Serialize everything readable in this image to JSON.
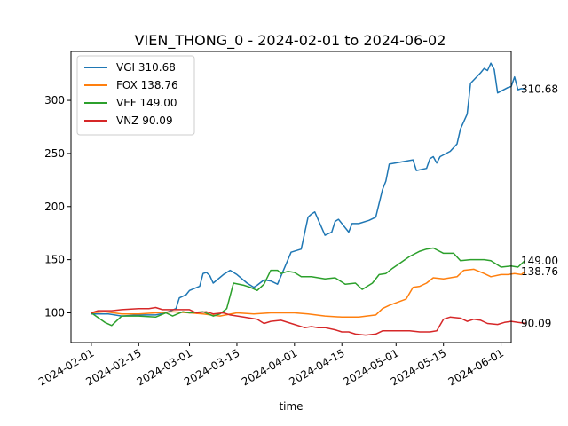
{
  "chart_data": {
    "type": "line",
    "title": "VIEN_THONG_0 - 2024-02-01 to 2024-06-02",
    "xlabel": "time",
    "ylabel": "",
    "x_range": [
      "2024-01-26",
      "2024-06-04"
    ],
    "ylim": [
      72,
      346
    ],
    "x_ticks": [
      "2024-02-01",
      "2024-02-15",
      "2024-03-01",
      "2024-03-15",
      "2024-04-01",
      "2024-04-15",
      "2024-05-01",
      "2024-05-15",
      "2024-06-01"
    ],
    "y_ticks": [
      100,
      150,
      200,
      250,
      300
    ],
    "grid": false,
    "legend_position": "top-left",
    "series": [
      {
        "name": "VGI 310.68",
        "end_label": "310.68",
        "color": "#1f77b4",
        "points": [
          [
            "2024-02-01",
            99
          ],
          [
            "2024-02-06",
            99
          ],
          [
            "2024-02-10",
            97
          ],
          [
            "2024-02-15",
            98
          ],
          [
            "2024-02-20",
            98
          ],
          [
            "2024-02-23",
            100
          ],
          [
            "2024-02-26",
            104
          ],
          [
            "2024-02-27",
            114
          ],
          [
            "2024-02-29",
            117
          ],
          [
            "2024-03-01",
            121
          ],
          [
            "2024-03-04",
            125
          ],
          [
            "2024-03-05",
            137
          ],
          [
            "2024-03-06",
            138
          ],
          [
            "2024-03-07",
            135
          ],
          [
            "2024-03-08",
            128
          ],
          [
            "2024-03-11",
            136
          ],
          [
            "2024-03-13",
            140
          ],
          [
            "2024-03-15",
            136
          ],
          [
            "2024-03-18",
            128
          ],
          [
            "2024-03-20",
            124
          ],
          [
            "2024-03-21",
            126
          ],
          [
            "2024-03-23",
            131
          ],
          [
            "2024-03-25",
            130
          ],
          [
            "2024-03-27",
            127
          ],
          [
            "2024-03-29",
            142
          ],
          [
            "2024-03-31",
            157
          ],
          [
            "2024-04-03",
            160
          ],
          [
            "2024-04-05",
            190
          ],
          [
            "2024-04-06",
            193
          ],
          [
            "2024-04-07",
            195
          ],
          [
            "2024-04-10",
            173
          ],
          [
            "2024-04-12",
            176
          ],
          [
            "2024-04-13",
            186
          ],
          [
            "2024-04-14",
            188
          ],
          [
            "2024-04-17",
            176
          ],
          [
            "2024-04-18",
            184
          ],
          [
            "2024-04-20",
            184
          ],
          [
            "2024-04-23",
            187
          ],
          [
            "2024-04-25",
            190
          ],
          [
            "2024-04-27",
            216
          ],
          [
            "2024-04-28",
            224
          ],
          [
            "2024-04-29",
            240
          ],
          [
            "2024-05-06",
            244
          ],
          [
            "2024-05-07",
            234
          ],
          [
            "2024-05-10",
            236
          ],
          [
            "2024-05-11",
            245
          ],
          [
            "2024-05-12",
            247
          ],
          [
            "2024-05-13",
            241
          ],
          [
            "2024-05-14",
            247
          ],
          [
            "2024-05-17",
            252
          ],
          [
            "2024-05-19",
            259
          ],
          [
            "2024-05-20",
            273
          ],
          [
            "2024-05-22",
            287
          ],
          [
            "2024-05-23",
            316
          ],
          [
            "2024-05-26",
            326
          ],
          [
            "2024-05-27",
            330
          ],
          [
            "2024-05-28",
            328
          ],
          [
            "2024-05-29",
            335
          ],
          [
            "2024-05-30",
            329
          ],
          [
            "2024-05-31",
            307
          ],
          [
            "2024-06-03",
            312
          ],
          [
            "2024-06-04",
            313
          ],
          [
            "2024-06-05",
            322
          ],
          [
            "2024-06-06",
            310
          ],
          [
            "2024-06-07",
            311
          ],
          [
            "2024-06-08",
            310.68
          ]
        ]
      },
      {
        "name": "FOX 138.76",
        "end_label": "138.76",
        "color": "#ff7f0e",
        "points": [
          [
            "2024-02-01",
            100
          ],
          [
            "2024-02-05",
            101
          ],
          [
            "2024-02-10",
            99
          ],
          [
            "2024-02-15",
            99
          ],
          [
            "2024-02-20",
            100
          ],
          [
            "2024-02-25",
            101
          ],
          [
            "2024-03-01",
            100
          ],
          [
            "2024-03-05",
            99
          ],
          [
            "2024-03-10",
            97
          ],
          [
            "2024-03-15",
            100
          ],
          [
            "2024-03-20",
            99
          ],
          [
            "2024-03-25",
            100
          ],
          [
            "2024-04-01",
            100
          ],
          [
            "2024-04-05",
            99
          ],
          [
            "2024-04-10",
            97
          ],
          [
            "2024-04-15",
            96
          ],
          [
            "2024-04-20",
            96
          ],
          [
            "2024-04-25",
            98
          ],
          [
            "2024-04-27",
            104
          ],
          [
            "2024-04-29",
            107
          ],
          [
            "2024-05-04",
            113
          ],
          [
            "2024-05-06",
            124
          ],
          [
            "2024-05-08",
            125
          ],
          [
            "2024-05-10",
            128
          ],
          [
            "2024-05-12",
            133
          ],
          [
            "2024-05-15",
            132
          ],
          [
            "2024-05-19",
            134
          ],
          [
            "2024-05-21",
            140
          ],
          [
            "2024-05-24",
            141
          ],
          [
            "2024-05-27",
            137
          ],
          [
            "2024-05-29",
            134
          ],
          [
            "2024-06-01",
            136
          ],
          [
            "2024-06-03",
            136
          ],
          [
            "2024-06-05",
            137
          ],
          [
            "2024-06-07",
            136
          ],
          [
            "2024-06-08",
            138.76
          ]
        ]
      },
      {
        "name": "VEF 149.00",
        "end_label": "149.00",
        "color": "#2ca02c",
        "points": [
          [
            "2024-02-01",
            100
          ],
          [
            "2024-02-05",
            91
          ],
          [
            "2024-02-07",
            88
          ],
          [
            "2024-02-10",
            97
          ],
          [
            "2024-02-15",
            97
          ],
          [
            "2024-02-20",
            96
          ],
          [
            "2024-02-23",
            100
          ],
          [
            "2024-02-25",
            97
          ],
          [
            "2024-02-28",
            101
          ],
          [
            "2024-03-01",
            100
          ],
          [
            "2024-03-05",
            101
          ],
          [
            "2024-03-08",
            97
          ],
          [
            "2024-03-10",
            99
          ],
          [
            "2024-03-12",
            104
          ],
          [
            "2024-03-14",
            128
          ],
          [
            "2024-03-17",
            126
          ],
          [
            "2024-03-19",
            124
          ],
          [
            "2024-03-21",
            121
          ],
          [
            "2024-03-23",
            127
          ],
          [
            "2024-03-25",
            140
          ],
          [
            "2024-03-27",
            140
          ],
          [
            "2024-03-28",
            137
          ],
          [
            "2024-03-30",
            139
          ],
          [
            "2024-04-01",
            138
          ],
          [
            "2024-04-03",
            134
          ],
          [
            "2024-04-06",
            134
          ],
          [
            "2024-04-10",
            132
          ],
          [
            "2024-04-13",
            133
          ],
          [
            "2024-04-16",
            127
          ],
          [
            "2024-04-19",
            128
          ],
          [
            "2024-04-21",
            122
          ],
          [
            "2024-04-24",
            128
          ],
          [
            "2024-04-26",
            136
          ],
          [
            "2024-04-28",
            137
          ],
          [
            "2024-04-30",
            142
          ],
          [
            "2024-05-05",
            153
          ],
          [
            "2024-05-08",
            158
          ],
          [
            "2024-05-10",
            160
          ],
          [
            "2024-05-12",
            161
          ],
          [
            "2024-05-15",
            156
          ],
          [
            "2024-05-18",
            156
          ],
          [
            "2024-05-20",
            149
          ],
          [
            "2024-05-23",
            150
          ],
          [
            "2024-05-27",
            150
          ],
          [
            "2024-05-29",
            149
          ],
          [
            "2024-06-01",
            143
          ],
          [
            "2024-06-04",
            144
          ],
          [
            "2024-06-06",
            143
          ],
          [
            "2024-06-08",
            149.0
          ]
        ]
      },
      {
        "name": "VNZ 90.09",
        "end_label": "90.09",
        "color": "#d62728",
        "points": [
          [
            "2024-02-01",
            100
          ],
          [
            "2024-02-03",
            102
          ],
          [
            "2024-02-07",
            102
          ],
          [
            "2024-02-10",
            103
          ],
          [
            "2024-02-15",
            104
          ],
          [
            "2024-02-18",
            104
          ],
          [
            "2024-02-20",
            105
          ],
          [
            "2024-02-22",
            103
          ],
          [
            "2024-02-25",
            103
          ],
          [
            "2024-02-28",
            103
          ],
          [
            "2024-03-01",
            103
          ],
          [
            "2024-03-03",
            100
          ],
          [
            "2024-03-06",
            101
          ],
          [
            "2024-03-08",
            99
          ],
          [
            "2024-03-11",
            100
          ],
          [
            "2024-03-13",
            98
          ],
          [
            "2024-03-17",
            96
          ],
          [
            "2024-03-21",
            94
          ],
          [
            "2024-03-23",
            90
          ],
          [
            "2024-03-25",
            92
          ],
          [
            "2024-03-28",
            93
          ],
          [
            "2024-04-01",
            89
          ],
          [
            "2024-04-04",
            86
          ],
          [
            "2024-04-06",
            87
          ],
          [
            "2024-04-08",
            86
          ],
          [
            "2024-04-10",
            86
          ],
          [
            "2024-04-13",
            84
          ],
          [
            "2024-04-15",
            82
          ],
          [
            "2024-04-17",
            82
          ],
          [
            "2024-04-19",
            80
          ],
          [
            "2024-04-22",
            79
          ],
          [
            "2024-04-25",
            80
          ],
          [
            "2024-04-27",
            83
          ],
          [
            "2024-05-01",
            83
          ],
          [
            "2024-05-05",
            83
          ],
          [
            "2024-05-08",
            82
          ],
          [
            "2024-05-11",
            82
          ],
          [
            "2024-05-13",
            83
          ],
          [
            "2024-05-15",
            94
          ],
          [
            "2024-05-17",
            96
          ],
          [
            "2024-05-20",
            95
          ],
          [
            "2024-05-22",
            92
          ],
          [
            "2024-05-24",
            94
          ],
          [
            "2024-05-26",
            93
          ],
          [
            "2024-05-28",
            90
          ],
          [
            "2024-05-31",
            89
          ],
          [
            "2024-06-02",
            91
          ],
          [
            "2024-06-04",
            92
          ],
          [
            "2024-06-06",
            91
          ],
          [
            "2024-06-08",
            90.09
          ]
        ]
      }
    ]
  }
}
